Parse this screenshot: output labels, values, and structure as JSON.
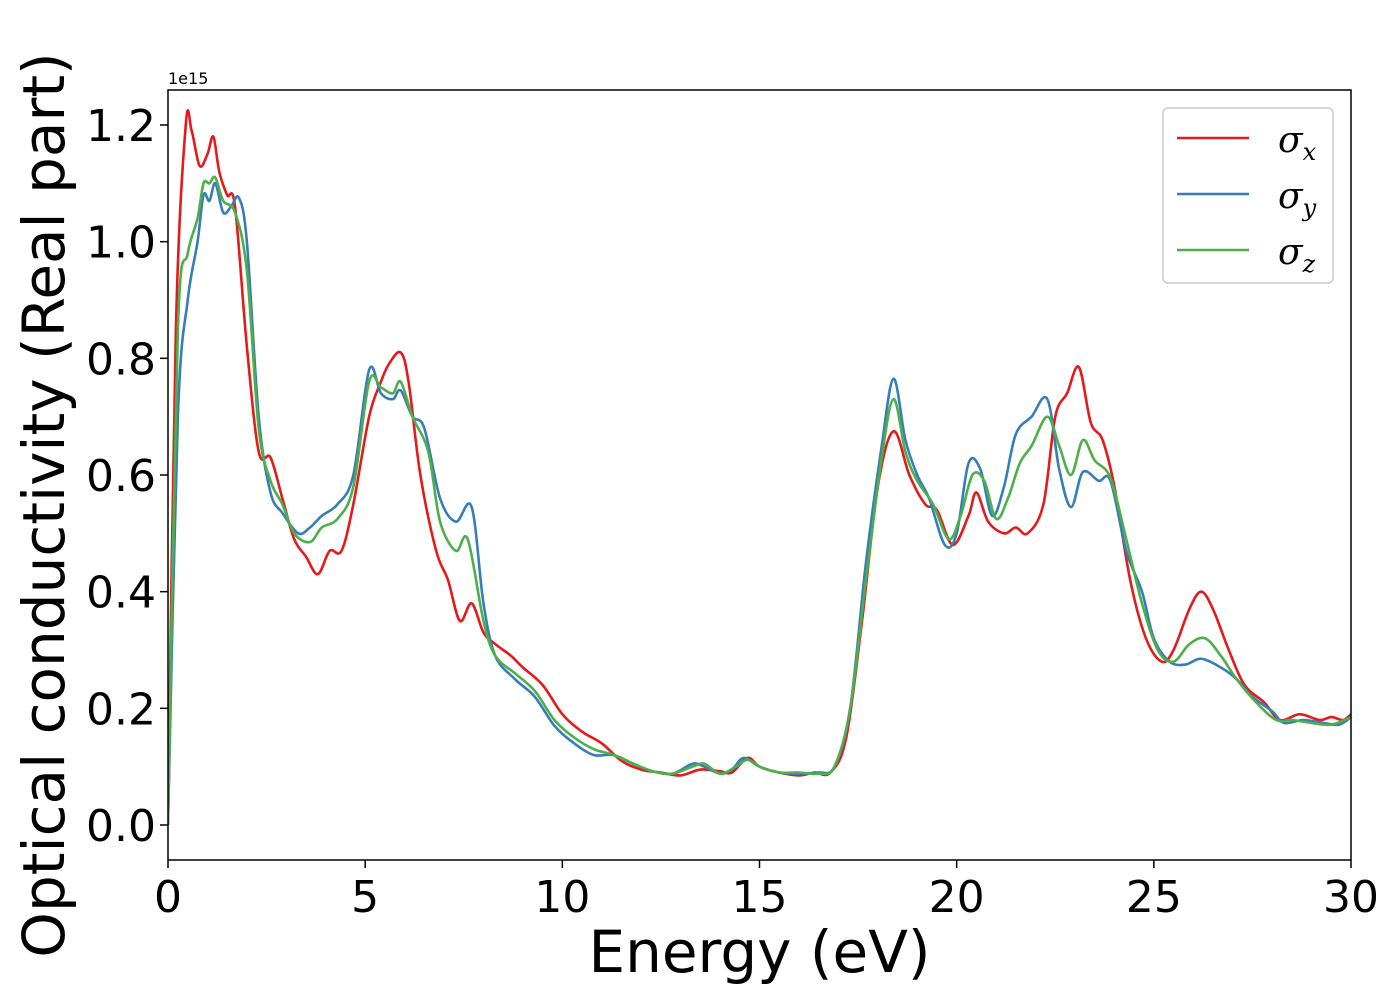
{
  "chart_data": {
    "type": "line",
    "title": "",
    "xlabel": "Energy (eV)",
    "ylabel": "Optical conductivity (Real part)",
    "y_offset_label": "1e15",
    "xlim": [
      0,
      30
    ],
    "ylim": [
      -0.06,
      1.26
    ],
    "xticks": [
      0,
      5,
      10,
      15,
      20,
      25,
      30
    ],
    "yticks": [
      0.0,
      0.2,
      0.4,
      0.6,
      0.8,
      1.0,
      1.2
    ],
    "xtick_labels": [
      "0",
      "5",
      "10",
      "15",
      "20",
      "25",
      "30"
    ],
    "ytick_labels": [
      "0.0",
      "0.2",
      "0.4",
      "0.6",
      "0.8",
      "1.0",
      "1.2"
    ],
    "grid": false,
    "legend_position": "top-right",
    "series": [
      {
        "name": "σx",
        "legend_symbol": "σ",
        "legend_sub": "x",
        "color": "#e41a1c",
        "points": [
          [
            0,
            0
          ],
          [
            0.2,
            0.85
          ],
          [
            0.45,
            1.2
          ],
          [
            0.6,
            1.19
          ],
          [
            0.8,
            1.13
          ],
          [
            1.0,
            1.15
          ],
          [
            1.15,
            1.18
          ],
          [
            1.3,
            1.12
          ],
          [
            1.5,
            1.08
          ],
          [
            1.7,
            1.06
          ],
          [
            2.0,
            0.82
          ],
          [
            2.3,
            0.64
          ],
          [
            2.6,
            0.63
          ],
          [
            2.9,
            0.56
          ],
          [
            3.2,
            0.49
          ],
          [
            3.5,
            0.46
          ],
          [
            3.8,
            0.43
          ],
          [
            4.1,
            0.47
          ],
          [
            4.4,
            0.47
          ],
          [
            4.7,
            0.55
          ],
          [
            5.1,
            0.7
          ],
          [
            5.4,
            0.76
          ],
          [
            5.6,
            0.79
          ],
          [
            5.9,
            0.81
          ],
          [
            6.1,
            0.76
          ],
          [
            6.4,
            0.6
          ],
          [
            6.8,
            0.47
          ],
          [
            7.1,
            0.42
          ],
          [
            7.4,
            0.35
          ],
          [
            7.7,
            0.38
          ],
          [
            8.0,
            0.33
          ],
          [
            8.3,
            0.31
          ],
          [
            8.7,
            0.29
          ],
          [
            9.0,
            0.27
          ],
          [
            9.5,
            0.24
          ],
          [
            10.0,
            0.19
          ],
          [
            10.5,
            0.16
          ],
          [
            11.0,
            0.14
          ],
          [
            11.5,
            0.11
          ],
          [
            12.0,
            0.095
          ],
          [
            12.5,
            0.09
          ],
          [
            13.0,
            0.085
          ],
          [
            13.5,
            0.095
          ],
          [
            14.0,
            0.092
          ],
          [
            14.3,
            0.09
          ],
          [
            14.7,
            0.115
          ],
          [
            15.0,
            0.1
          ],
          [
            15.5,
            0.09
          ],
          [
            16.0,
            0.085
          ],
          [
            16.4,
            0.09
          ],
          [
            16.8,
            0.09
          ],
          [
            17.2,
            0.15
          ],
          [
            17.6,
            0.35
          ],
          [
            18.0,
            0.58
          ],
          [
            18.4,
            0.675
          ],
          [
            18.8,
            0.6
          ],
          [
            19.2,
            0.55
          ],
          [
            19.5,
            0.54
          ],
          [
            19.9,
            0.48
          ],
          [
            20.3,
            0.53
          ],
          [
            20.5,
            0.57
          ],
          [
            20.8,
            0.52
          ],
          [
            21.2,
            0.5
          ],
          [
            21.5,
            0.51
          ],
          [
            21.8,
            0.5
          ],
          [
            22.2,
            0.55
          ],
          [
            22.5,
            0.7
          ],
          [
            22.8,
            0.74
          ],
          [
            23.1,
            0.785
          ],
          [
            23.4,
            0.69
          ],
          [
            23.7,
            0.66
          ],
          [
            24.0,
            0.58
          ],
          [
            24.4,
            0.42
          ],
          [
            24.8,
            0.32
          ],
          [
            25.2,
            0.28
          ],
          [
            25.5,
            0.3
          ],
          [
            25.9,
            0.37
          ],
          [
            26.2,
            0.4
          ],
          [
            26.5,
            0.37
          ],
          [
            26.9,
            0.3
          ],
          [
            27.3,
            0.24
          ],
          [
            27.8,
            0.21
          ],
          [
            28.2,
            0.18
          ],
          [
            28.7,
            0.19
          ],
          [
            29.2,
            0.18
          ],
          [
            29.5,
            0.185
          ],
          [
            29.8,
            0.18
          ],
          [
            30.0,
            0.19
          ]
        ]
      },
      {
        "name": "σy",
        "legend_symbol": "σ",
        "legend_sub": "y",
        "color": "#377eb8",
        "points": [
          [
            0,
            0
          ],
          [
            0.25,
            0.7
          ],
          [
            0.5,
            0.9
          ],
          [
            0.75,
            1.0
          ],
          [
            0.9,
            1.08
          ],
          [
            1.05,
            1.07
          ],
          [
            1.2,
            1.1
          ],
          [
            1.4,
            1.05
          ],
          [
            1.6,
            1.06
          ],
          [
            1.8,
            1.075
          ],
          [
            2.0,
            1.0
          ],
          [
            2.3,
            0.7
          ],
          [
            2.6,
            0.57
          ],
          [
            2.9,
            0.535
          ],
          [
            3.3,
            0.5
          ],
          [
            3.6,
            0.51
          ],
          [
            3.9,
            0.53
          ],
          [
            4.3,
            0.55
          ],
          [
            4.7,
            0.6
          ],
          [
            5.1,
            0.78
          ],
          [
            5.4,
            0.74
          ],
          [
            5.7,
            0.73
          ],
          [
            5.9,
            0.745
          ],
          [
            6.2,
            0.7
          ],
          [
            6.5,
            0.68
          ],
          [
            6.9,
            0.56
          ],
          [
            7.3,
            0.52
          ],
          [
            7.7,
            0.545
          ],
          [
            8.0,
            0.38
          ],
          [
            8.3,
            0.29
          ],
          [
            8.8,
            0.25
          ],
          [
            9.3,
            0.22
          ],
          [
            9.8,
            0.17
          ],
          [
            10.3,
            0.14
          ],
          [
            10.8,
            0.12
          ],
          [
            11.3,
            0.12
          ],
          [
            11.8,
            0.105
          ],
          [
            12.3,
            0.092
          ],
          [
            12.8,
            0.088
          ],
          [
            13.3,
            0.105
          ],
          [
            13.6,
            0.1
          ],
          [
            14.0,
            0.088
          ],
          [
            14.3,
            0.095
          ],
          [
            14.6,
            0.115
          ],
          [
            15.0,
            0.1
          ],
          [
            15.5,
            0.09
          ],
          [
            16.0,
            0.088
          ],
          [
            16.5,
            0.09
          ],
          [
            16.9,
            0.1
          ],
          [
            17.3,
            0.2
          ],
          [
            17.7,
            0.45
          ],
          [
            18.1,
            0.65
          ],
          [
            18.4,
            0.765
          ],
          [
            18.7,
            0.66
          ],
          [
            19.0,
            0.6
          ],
          [
            19.3,
            0.56
          ],
          [
            19.7,
            0.48
          ],
          [
            20.0,
            0.5
          ],
          [
            20.3,
            0.62
          ],
          [
            20.6,
            0.61
          ],
          [
            20.9,
            0.53
          ],
          [
            21.2,
            0.58
          ],
          [
            21.5,
            0.67
          ],
          [
            21.9,
            0.7
          ],
          [
            22.3,
            0.73
          ],
          [
            22.6,
            0.61
          ],
          [
            22.9,
            0.545
          ],
          [
            23.2,
            0.605
          ],
          [
            23.6,
            0.59
          ],
          [
            23.9,
            0.59
          ],
          [
            24.3,
            0.47
          ],
          [
            24.7,
            0.4
          ],
          [
            25.0,
            0.32
          ],
          [
            25.4,
            0.28
          ],
          [
            25.8,
            0.275
          ],
          [
            26.2,
            0.285
          ],
          [
            26.7,
            0.27
          ],
          [
            27.1,
            0.25
          ],
          [
            27.5,
            0.22
          ],
          [
            28.0,
            0.195
          ],
          [
            28.3,
            0.175
          ],
          [
            28.8,
            0.18
          ],
          [
            29.3,
            0.175
          ],
          [
            29.7,
            0.172
          ],
          [
            30.0,
            0.185
          ]
        ]
      },
      {
        "name": "σz",
        "legend_symbol": "σ",
        "legend_sub": "z",
        "color": "#4daf4a",
        "points": [
          [
            0,
            0
          ],
          [
            0.25,
            0.85
          ],
          [
            0.5,
            0.98
          ],
          [
            0.75,
            1.04
          ],
          [
            0.9,
            1.1
          ],
          [
            1.05,
            1.1
          ],
          [
            1.2,
            1.11
          ],
          [
            1.4,
            1.07
          ],
          [
            1.7,
            1.05
          ],
          [
            2.0,
            0.95
          ],
          [
            2.3,
            0.68
          ],
          [
            2.6,
            0.59
          ],
          [
            2.9,
            0.55
          ],
          [
            3.2,
            0.5
          ],
          [
            3.6,
            0.485
          ],
          [
            3.9,
            0.51
          ],
          [
            4.3,
            0.525
          ],
          [
            4.7,
            0.58
          ],
          [
            5.1,
            0.76
          ],
          [
            5.4,
            0.75
          ],
          [
            5.7,
            0.74
          ],
          [
            5.9,
            0.76
          ],
          [
            6.2,
            0.7
          ],
          [
            6.6,
            0.64
          ],
          [
            6.9,
            0.52
          ],
          [
            7.3,
            0.47
          ],
          [
            7.6,
            0.49
          ],
          [
            8.0,
            0.35
          ],
          [
            8.3,
            0.29
          ],
          [
            8.8,
            0.26
          ],
          [
            9.3,
            0.23
          ],
          [
            9.8,
            0.18
          ],
          [
            10.3,
            0.15
          ],
          [
            10.8,
            0.13
          ],
          [
            11.3,
            0.12
          ],
          [
            11.8,
            0.105
          ],
          [
            12.3,
            0.092
          ],
          [
            12.8,
            0.088
          ],
          [
            13.3,
            0.1
          ],
          [
            13.6,
            0.105
          ],
          [
            14.0,
            0.088
          ],
          [
            14.4,
            0.1
          ],
          [
            14.7,
            0.112
          ],
          [
            15.0,
            0.1
          ],
          [
            15.5,
            0.09
          ],
          [
            16.0,
            0.09
          ],
          [
            16.5,
            0.088
          ],
          [
            16.9,
            0.1
          ],
          [
            17.3,
            0.2
          ],
          [
            17.7,
            0.42
          ],
          [
            18.1,
            0.63
          ],
          [
            18.4,
            0.73
          ],
          [
            18.7,
            0.64
          ],
          [
            19.0,
            0.59
          ],
          [
            19.4,
            0.55
          ],
          [
            19.8,
            0.49
          ],
          [
            20.1,
            0.53
          ],
          [
            20.4,
            0.6
          ],
          [
            20.7,
            0.59
          ],
          [
            21.0,
            0.525
          ],
          [
            21.3,
            0.56
          ],
          [
            21.6,
            0.62
          ],
          [
            21.9,
            0.65
          ],
          [
            22.3,
            0.7
          ],
          [
            22.6,
            0.65
          ],
          [
            22.9,
            0.6
          ],
          [
            23.2,
            0.66
          ],
          [
            23.5,
            0.625
          ],
          [
            23.9,
            0.595
          ],
          [
            24.3,
            0.49
          ],
          [
            24.7,
            0.38
          ],
          [
            25.1,
            0.3
          ],
          [
            25.5,
            0.28
          ],
          [
            25.9,
            0.31
          ],
          [
            26.3,
            0.32
          ],
          [
            26.7,
            0.29
          ],
          [
            27.1,
            0.25
          ],
          [
            27.6,
            0.21
          ],
          [
            28.1,
            0.18
          ],
          [
            28.5,
            0.18
          ],
          [
            29.0,
            0.175
          ],
          [
            29.5,
            0.172
          ],
          [
            30.0,
            0.185
          ]
        ]
      }
    ]
  }
}
